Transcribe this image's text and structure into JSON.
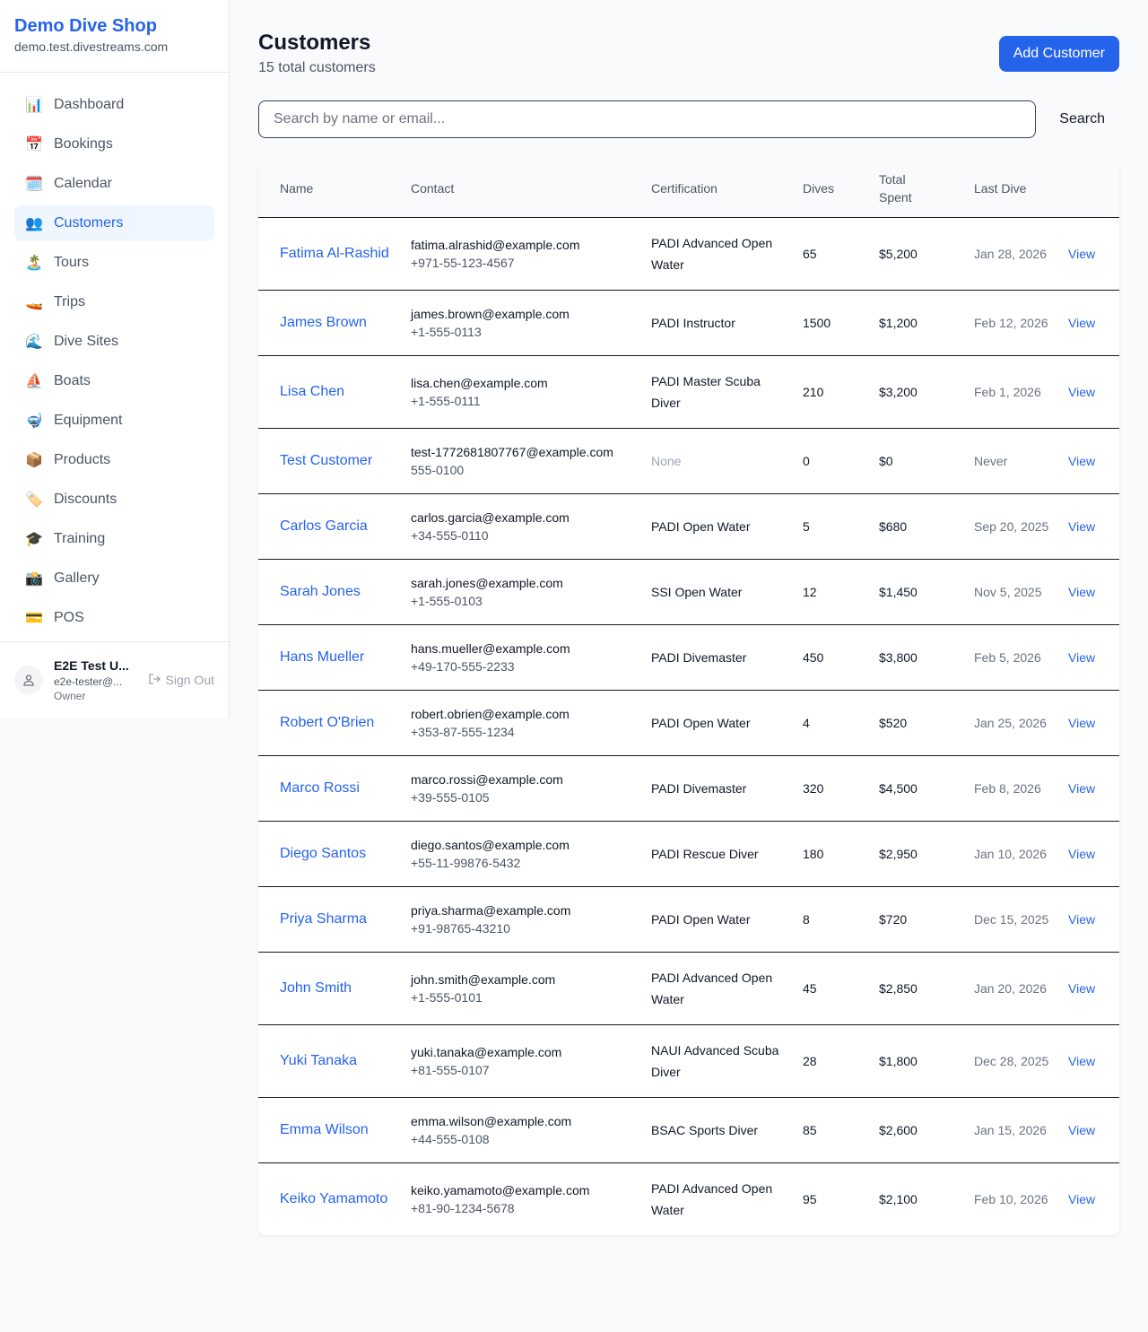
{
  "sidebar": {
    "brand": "Demo Dive Shop",
    "domain": "demo.test.divestreams.com",
    "items": [
      {
        "label": "Dashboard",
        "icon": "📊"
      },
      {
        "label": "Bookings",
        "icon": "📅"
      },
      {
        "label": "Calendar",
        "icon": "🗓️"
      },
      {
        "label": "Customers",
        "icon": "👥",
        "active": true
      },
      {
        "label": "Tours",
        "icon": "🏝️"
      },
      {
        "label": "Trips",
        "icon": "🚤"
      },
      {
        "label": "Dive Sites",
        "icon": "🌊"
      },
      {
        "label": "Boats",
        "icon": "⛵"
      },
      {
        "label": "Equipment",
        "icon": "🤿"
      },
      {
        "label": "Products",
        "icon": "📦"
      },
      {
        "label": "Discounts",
        "icon": "🏷️"
      },
      {
        "label": "Training",
        "icon": "🎓"
      },
      {
        "label": "Gallery",
        "icon": "📸"
      },
      {
        "label": "POS",
        "icon": "💳"
      }
    ],
    "user": {
      "name": "E2E Test U...",
      "email": "e2e-tester@...",
      "role": "Owner",
      "sign_out": "Sign Out"
    }
  },
  "header": {
    "title": "Customers",
    "subtitle": "15 total customers",
    "add_label": "Add Customer"
  },
  "search": {
    "placeholder": "Search by name or email...",
    "button": "Search"
  },
  "table": {
    "columns": [
      "Name",
      "Contact",
      "Certification",
      "Dives",
      "Total Spent",
      "Last Dive",
      ""
    ],
    "rows": [
      {
        "name": "Fatima Al-Rashid",
        "email": "fatima.alrashid@example.com",
        "phone": "+971-55-123-4567",
        "cert": "PADI Advanced Open Water",
        "dives": "65",
        "spent": "$5,200",
        "last": "Jan 28, 2026",
        "action": "View"
      },
      {
        "name": "James Brown",
        "email": "james.brown@example.com",
        "phone": "+1-555-0113",
        "cert": "PADI Instructor",
        "dives": "1500",
        "spent": "$1,200",
        "last": "Feb 12, 2026",
        "action": "View"
      },
      {
        "name": "Lisa Chen",
        "email": "lisa.chen@example.com",
        "phone": "+1-555-0111",
        "cert": "PADI Master Scuba Diver",
        "dives": "210",
        "spent": "$3,200",
        "last": "Feb 1, 2026",
        "action": "View"
      },
      {
        "name": "Test Customer",
        "email": "test-1772681807767@example.com",
        "phone": "555-0100",
        "cert": "None",
        "dives": "0",
        "spent": "$0",
        "last": "Never",
        "action": "View"
      },
      {
        "name": "Carlos Garcia",
        "email": "carlos.garcia@example.com",
        "phone": "+34-555-0110",
        "cert": "PADI Open Water",
        "dives": "5",
        "spent": "$680",
        "last": "Sep 20, 2025",
        "action": "View"
      },
      {
        "name": "Sarah Jones",
        "email": "sarah.jones@example.com",
        "phone": "+1-555-0103",
        "cert": "SSI Open Water",
        "dives": "12",
        "spent": "$1,450",
        "last": "Nov 5, 2025",
        "action": "View"
      },
      {
        "name": "Hans Mueller",
        "email": "hans.mueller@example.com",
        "phone": "+49-170-555-2233",
        "cert": "PADI Divemaster",
        "dives": "450",
        "spent": "$3,800",
        "last": "Feb 5, 2026",
        "action": "View"
      },
      {
        "name": "Robert O'Brien",
        "email": "robert.obrien@example.com",
        "phone": "+353-87-555-1234",
        "cert": "PADI Open Water",
        "dives": "4",
        "spent": "$520",
        "last": "Jan 25, 2026",
        "action": "View"
      },
      {
        "name": "Marco Rossi",
        "email": "marco.rossi@example.com",
        "phone": "+39-555-0105",
        "cert": "PADI Divemaster",
        "dives": "320",
        "spent": "$4,500",
        "last": "Feb 8, 2026",
        "action": "View"
      },
      {
        "name": "Diego Santos",
        "email": "diego.santos@example.com",
        "phone": "+55-11-99876-5432",
        "cert": "PADI Rescue Diver",
        "dives": "180",
        "spent": "$2,950",
        "last": "Jan 10, 2026",
        "action": "View"
      },
      {
        "name": "Priya Sharma",
        "email": "priya.sharma@example.com",
        "phone": "+91-98765-43210",
        "cert": "PADI Open Water",
        "dives": "8",
        "spent": "$720",
        "last": "Dec 15, 2025",
        "action": "View"
      },
      {
        "name": "John Smith",
        "email": "john.smith@example.com",
        "phone": "+1-555-0101",
        "cert": "PADI Advanced Open Water",
        "dives": "45",
        "spent": "$2,850",
        "last": "Jan 20, 2026",
        "action": "View"
      },
      {
        "name": "Yuki Tanaka",
        "email": "yuki.tanaka@example.com",
        "phone": "+81-555-0107",
        "cert": "NAUI Advanced Scuba Diver",
        "dives": "28",
        "spent": "$1,800",
        "last": "Dec 28, 2025",
        "action": "View"
      },
      {
        "name": "Emma Wilson",
        "email": "emma.wilson@example.com",
        "phone": "+44-555-0108",
        "cert": "BSAC Sports Diver",
        "dives": "85",
        "spent": "$2,600",
        "last": "Jan 15, 2026",
        "action": "View"
      },
      {
        "name": "Keiko Yamamoto",
        "email": "keiko.yamamoto@example.com",
        "phone": "+81-90-1234-5678",
        "cert": "PADI Advanced Open Water",
        "dives": "95",
        "spent": "$2,100",
        "last": "Feb 10, 2026",
        "action": "View"
      }
    ]
  }
}
